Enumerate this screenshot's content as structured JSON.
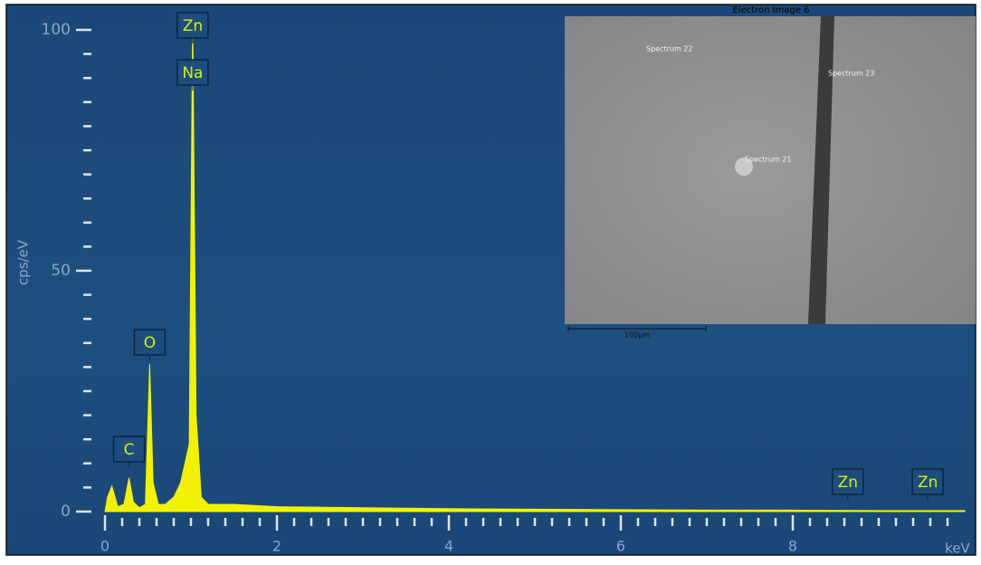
{
  "chart_data": {
    "type": "area",
    "x": [
      0,
      0.03,
      0.08,
      0.15,
      0.22,
      0.28,
      0.33,
      0.4,
      0.47,
      0.52,
      0.56,
      0.62,
      0.7,
      0.8,
      0.88,
      0.93,
      0.98,
      1.02,
      1.06,
      1.12,
      1.2,
      1.5,
      2,
      3,
      4,
      5,
      6,
      7,
      8,
      9,
      10
    ],
    "values": [
      0,
      3,
      5.3,
      1,
      1.5,
      7,
      2,
      0.8,
      1.5,
      30.6,
      6,
      1.5,
      1.5,
      3,
      6,
      10,
      14,
      103,
      20,
      3,
      1.5,
      1.5,
      1,
      0.8,
      0.6,
      0.5,
      0.4,
      0.3,
      0.3,
      0.2,
      0.2
    ],
    "color": "#f2f200",
    "xlim": [
      0,
      10
    ],
    "ylim": [
      0,
      100
    ],
    "xticks": [
      0,
      2,
      4,
      6,
      8
    ],
    "yticks": [
      0,
      50,
      100
    ],
    "xticks_minor": [
      0.2,
      0.4,
      0.6,
      0.8,
      1,
      1.2,
      1.4,
      1.6,
      1.8,
      2.2,
      2.4,
      2.6,
      2.8,
      3,
      3.2,
      3.4,
      3.6,
      3.8,
      4.2,
      4.4,
      4.6,
      4.8,
      5,
      5.2,
      5.4,
      5.6,
      5.8,
      6.2,
      6.4,
      6.6,
      6.8,
      7,
      7.2,
      7.4,
      7.6,
      7.8,
      8.2,
      8.4,
      8.6,
      8.8,
      9,
      9.2,
      9.4,
      9.6,
      9.8
    ],
    "yticks_minor": [
      5,
      10,
      15,
      20,
      25,
      30,
      35,
      40,
      45,
      55,
      60,
      65,
      70,
      75,
      80,
      85,
      90,
      95
    ],
    "ylabel": "cps/eV",
    "xlabel": "keV",
    "peak_labels": [
      {
        "text": "Zn",
        "x": 1.02
      },
      {
        "text": "Na",
        "x": 1.02
      },
      {
        "text": "O",
        "x": 0.52
      },
      {
        "text": "C",
        "x": 0.28
      },
      {
        "text": "Zn",
        "x": 8.64
      },
      {
        "text": "Zn",
        "x": 9.57
      }
    ]
  },
  "inset": {
    "title": "Electron Image 6",
    "spectra": [
      "Spectrum 22",
      "Spectrum 23",
      "Spectrum 21"
    ],
    "scale_bar": "100µm"
  }
}
